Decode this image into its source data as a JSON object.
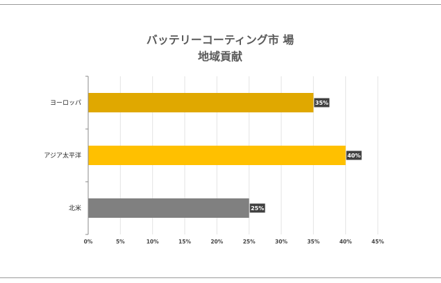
{
  "chart_data": {
    "type": "bar",
    "orientation": "horizontal",
    "title_lines": [
      "バッテリーコーティング市 場",
      "地域貢献"
    ],
    "categories": [
      "ヨーロッパ",
      "アジア太平洋",
      "北米"
    ],
    "values": [
      35,
      40,
      25
    ],
    "data_labels": [
      "35%",
      "40%",
      "25%"
    ],
    "bar_colors": [
      "#E0A800",
      "#FFC000",
      "#808080"
    ],
    "xlim": [
      0,
      45
    ],
    "xticks": [
      0,
      5,
      10,
      15,
      20,
      25,
      30,
      35,
      40,
      45
    ],
    "xtick_labels": [
      "0%",
      "5%",
      "10%",
      "15%",
      "20%",
      "25%",
      "30%",
      "35%",
      "40%",
      "45%"
    ],
    "grid": true,
    "legend": "none"
  }
}
